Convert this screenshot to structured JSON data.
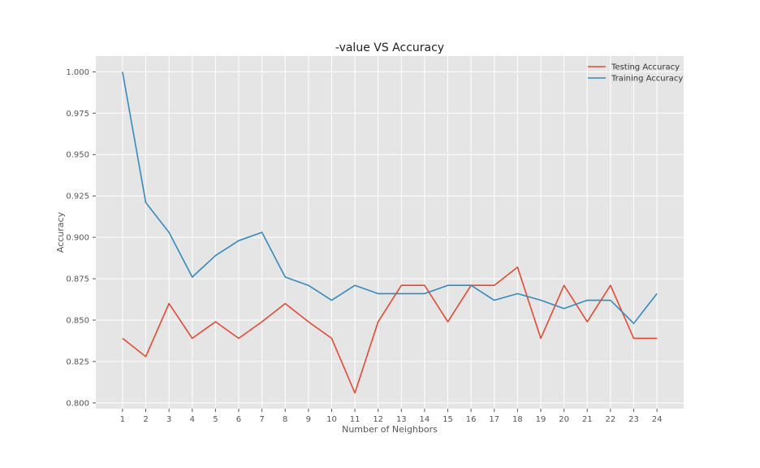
{
  "chart_data": {
    "type": "line",
    "title": "-value VS Accuracy",
    "xlabel": "Number of Neighbors",
    "ylabel": "Accuracy",
    "x": [
      1,
      2,
      3,
      4,
      5,
      6,
      7,
      8,
      9,
      10,
      11,
      12,
      13,
      14,
      15,
      16,
      17,
      18,
      19,
      20,
      21,
      22,
      23,
      24
    ],
    "xticks": [
      "1",
      "2",
      "3",
      "4",
      "5",
      "6",
      "7",
      "8",
      "9",
      "10",
      "11",
      "12",
      "13",
      "14",
      "15",
      "16",
      "17",
      "18",
      "19",
      "20",
      "21",
      "22",
      "23",
      "24"
    ],
    "yticks": [
      "0.800",
      "0.825",
      "0.850",
      "0.875",
      "0.900",
      "0.925",
      "0.950",
      "0.975",
      "1.000"
    ],
    "ytick_values": [
      0.8,
      0.825,
      0.85,
      0.875,
      0.9,
      0.925,
      0.95,
      0.975,
      1.0
    ],
    "xlim": [
      -0.15,
      25.15
    ],
    "ylim": [
      0.7965,
      1.0095
    ],
    "grid": true,
    "legend_position": "top-right",
    "series": [
      {
        "name": "Testing Accuracy",
        "color": "#E24A33",
        "values": [
          0.839,
          0.828,
          0.86,
          0.839,
          0.849,
          0.839,
          0.849,
          0.86,
          0.849,
          0.839,
          0.806,
          0.849,
          0.871,
          0.871,
          0.849,
          0.871,
          0.871,
          0.882,
          0.839,
          0.871,
          0.849,
          0.871,
          0.839,
          0.839
        ]
      },
      {
        "name": "Training Accuracy",
        "color": "#348ABD",
        "values": [
          1.0,
          0.921,
          0.903,
          0.876,
          0.889,
          0.898,
          0.903,
          0.876,
          0.871,
          0.862,
          0.871,
          0.866,
          0.866,
          0.866,
          0.871,
          0.871,
          0.862,
          0.866,
          0.862,
          0.857,
          0.862,
          0.862,
          0.848,
          0.866
        ]
      }
    ]
  }
}
